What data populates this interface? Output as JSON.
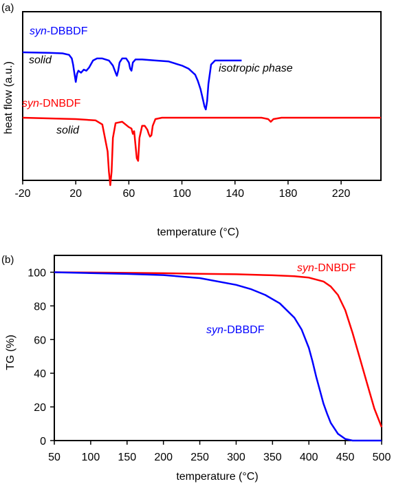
{
  "chart_data": [
    {
      "panel_label": "(a)",
      "type": "line",
      "xlabel": "temperature (°C)",
      "ylabel": "heat flow (a.u.)",
      "xlim": [
        -20,
        250
      ],
      "xticks": [
        -20,
        20,
        60,
        100,
        140,
        180,
        220
      ],
      "yticks_shown": false,
      "grid": false,
      "series": [
        {
          "name": "syn-DBBDF",
          "name_italic": "syn",
          "name_rest": "-DBBDF",
          "color": "#0000ff",
          "x": [
            -20,
            0,
            10,
            15,
            17,
            18,
            19,
            20,
            21,
            22,
            24,
            26,
            28,
            30,
            33,
            36,
            40,
            45,
            48,
            50,
            51,
            52,
            53,
            55,
            58,
            60,
            61,
            62,
            63,
            65,
            70,
            80,
            90,
            100,
            105,
            110,
            112,
            114,
            116,
            117,
            118,
            119,
            120,
            122,
            125,
            130,
            140,
            145
          ],
          "y": [
            0.56,
            0.555,
            0.55,
            0.535,
            0.5,
            0.44,
            0.35,
            0.27,
            0.35,
            0.38,
            0.36,
            0.39,
            0.38,
            0.41,
            0.48,
            0.5,
            0.5,
            0.48,
            0.43,
            0.36,
            0.33,
            0.38,
            0.46,
            0.5,
            0.5,
            0.46,
            0.4,
            0.38,
            0.46,
            0.49,
            0.49,
            0.48,
            0.47,
            0.43,
            0.4,
            0.34,
            0.28,
            0.2,
            0.09,
            0.03,
            0.0,
            0.08,
            0.25,
            0.44,
            0.48,
            0.48,
            0.48,
            0.48
          ]
        },
        {
          "name": "syn-DNBDF",
          "name_italic": "syn",
          "name_rest": "-DNBDF",
          "color": "#ff0000",
          "x": [
            -20,
            0,
            20,
            35,
            40,
            44,
            45,
            46,
            47,
            48,
            50,
            55,
            60,
            62,
            63,
            64,
            65,
            66,
            67,
            68,
            70,
            72,
            74,
            75,
            76,
            77,
            78,
            80,
            85,
            90,
            100,
            120,
            140,
            160,
            165,
            167,
            169,
            175,
            200,
            230,
            250
          ],
          "y": [
            0.5,
            0.495,
            0.49,
            0.48,
            0.45,
            0.25,
            0.1,
            0.0,
            0.1,
            0.35,
            0.46,
            0.47,
            0.43,
            0.42,
            0.38,
            0.4,
            0.3,
            0.2,
            0.18,
            0.35,
            0.44,
            0.44,
            0.41,
            0.38,
            0.36,
            0.37,
            0.44,
            0.49,
            0.5,
            0.5,
            0.5,
            0.5,
            0.5,
            0.5,
            0.49,
            0.47,
            0.49,
            0.5,
            0.5,
            0.5,
            0.5
          ]
        }
      ],
      "annotations": [
        {
          "text": "solid",
          "series": "syn-DBBDF"
        },
        {
          "text": "isotropic phase",
          "series": "syn-DBBDF"
        },
        {
          "text": "solid",
          "series": "syn-DNBDF"
        }
      ]
    },
    {
      "panel_label": "(b)",
      "type": "line",
      "xlabel": "temperature (°C)",
      "ylabel": "TG (%)",
      "xlim": [
        50,
        500
      ],
      "ylim": [
        0,
        110
      ],
      "xticks": [
        50,
        100,
        150,
        200,
        250,
        300,
        350,
        400,
        450,
        500
      ],
      "yticks": [
        0,
        20,
        40,
        60,
        80,
        100
      ],
      "grid": false,
      "series": [
        {
          "name": "syn-DNBDF",
          "name_italic": "syn",
          "name_rest": "-DNBDF",
          "color": "#ff0000",
          "x": [
            50,
            100,
            150,
            200,
            250,
            300,
            350,
            380,
            400,
            420,
            430,
            440,
            450,
            460,
            470,
            480,
            490,
            500
          ],
          "y": [
            100,
            99.8,
            99.6,
            99.4,
            99.1,
            98.8,
            98.2,
            97.6,
            96.8,
            94.5,
            91.5,
            86.5,
            77.5,
            64,
            49,
            34,
            19,
            8
          ]
        },
        {
          "name": "syn-DBBDF",
          "name_italic": "syn",
          "name_rest": "-DBBDF",
          "color": "#0000ff",
          "x": [
            50,
            100,
            150,
            200,
            250,
            300,
            320,
            340,
            360,
            380,
            390,
            400,
            405,
            410,
            415,
            420,
            425,
            430,
            440,
            450,
            460,
            500
          ],
          "y": [
            100,
            99.5,
            99,
            98.3,
            96.5,
            92.5,
            90,
            86.5,
            81.5,
            73,
            66,
            55,
            47,
            38,
            30,
            22,
            16,
            10.5,
            4,
            1,
            0,
            0
          ]
        }
      ]
    }
  ]
}
